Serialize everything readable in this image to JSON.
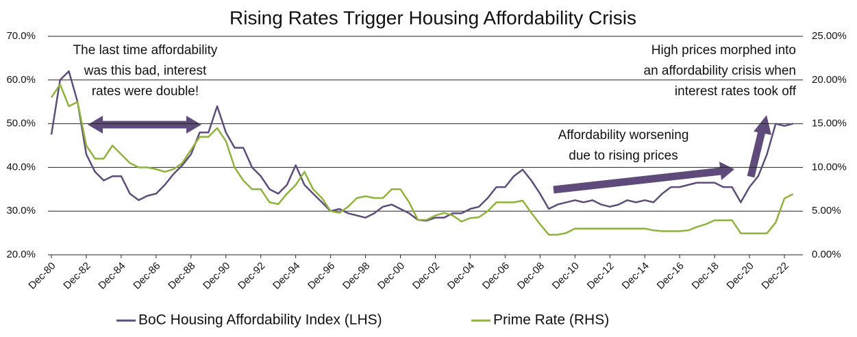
{
  "chart_data": {
    "type": "line",
    "title": "Rising Rates Trigger Housing Affordability Crisis",
    "categories": [
      "Dec-80",
      null,
      null,
      null,
      "Dec-82",
      null,
      null,
      null,
      "Dec-84",
      null,
      null,
      null,
      "Dec-86",
      null,
      null,
      null,
      "Dec-88",
      null,
      null,
      null,
      "Dec-90",
      null,
      null,
      null,
      "Dec-92",
      null,
      null,
      null,
      "Dec-94",
      null,
      null,
      null,
      "Dec-96",
      null,
      null,
      null,
      "Dec-98",
      null,
      null,
      null,
      "Dec-00",
      null,
      null,
      null,
      "Dec-02",
      null,
      null,
      null,
      "Dec-04",
      null,
      null,
      null,
      "Dec-06",
      null,
      null,
      null,
      "Dec-08",
      null,
      null,
      null,
      "Dec-10",
      null,
      null,
      null,
      "Dec-12",
      null,
      null,
      null,
      "Dec-14",
      null,
      null,
      null,
      "Dec-16",
      null,
      null,
      null,
      "Dec-18",
      null,
      null,
      null,
      "Dec-20",
      null,
      null,
      null,
      "Dec-22",
      null
    ],
    "series": [
      {
        "name": "BoC Housing Affordability Index (LHS)",
        "color": "#5e4b7c",
        "axis": "y",
        "values": [
          47.5,
          60,
          62,
          55,
          43,
          39,
          37,
          38,
          38,
          34,
          32.5,
          33.5,
          34,
          36,
          38.5,
          40.5,
          43,
          48,
          48,
          54,
          48,
          44.5,
          44.5,
          40,
          38,
          35,
          34,
          36,
          40.5,
          36,
          34,
          32,
          30,
          30.5,
          29.5,
          29,
          28.5,
          29.5,
          31,
          31.5,
          30.5,
          29.5,
          28,
          27.8,
          28.5,
          28.5,
          29.5,
          29.5,
          30.5,
          31,
          33,
          35.5,
          35.5,
          38,
          39.5,
          37,
          34,
          30.5,
          31.5,
          32,
          32.5,
          32,
          32.5,
          31.5,
          31,
          31.5,
          32.5,
          32,
          32.5,
          32,
          34,
          35.5,
          35.5,
          36,
          36.5,
          36.5,
          36.5,
          35.5,
          35.5,
          32,
          35.5,
          38,
          43,
          50,
          49.5,
          50
        ]
      },
      {
        "name": "Prime Rate (RHS)",
        "color": "#8db33a",
        "axis": "y2",
        "values": [
          18,
          19.5,
          17,
          17.5,
          12.5,
          11,
          11,
          12.5,
          11.5,
          10.5,
          10,
          10,
          9.8,
          9.5,
          9.8,
          10.5,
          12,
          13.5,
          13.5,
          14.5,
          13,
          10,
          8.5,
          7.5,
          7.5,
          6,
          5.8,
          7,
          8,
          9.5,
          7.5,
          6.5,
          5,
          4.8,
          5.5,
          6.5,
          6.7,
          6.5,
          6.5,
          7.5,
          7.5,
          6,
          4,
          4,
          4.5,
          4.8,
          4.5,
          3.8,
          4.2,
          4.3,
          5,
          6,
          6,
          6,
          6.2,
          4.8,
          3.5,
          2.3,
          2.3,
          2.5,
          3,
          3,
          3,
          3,
          3,
          3,
          3,
          3,
          3,
          2.8,
          2.7,
          2.7,
          2.7,
          2.8,
          3.2,
          3.5,
          3.95,
          3.95,
          3.95,
          2.45,
          2.45,
          2.45,
          2.45,
          3.7,
          6.45,
          6.95
        ]
      }
    ],
    "ylim": [
      20,
      70
    ],
    "yticks": [
      {
        "value": 20,
        "label": "20.0%"
      },
      {
        "value": 30,
        "label": "30.0%"
      },
      {
        "value": 40,
        "label": "40.0%"
      },
      {
        "value": 50,
        "label": "50.0%"
      },
      {
        "value": 60,
        "label": "60.0%"
      },
      {
        "value": 70,
        "label": "70.0%"
      }
    ],
    "y2lim": [
      0,
      25
    ],
    "y2ticks": [
      {
        "value": 0,
        "label": "0.00%"
      },
      {
        "value": 5,
        "label": "5.00%"
      },
      {
        "value": 10,
        "label": "10.00%"
      },
      {
        "value": 15,
        "label": "15.00%"
      },
      {
        "value": 20,
        "label": "20.00%"
      },
      {
        "value": 25,
        "label": "25.00%"
      }
    ],
    "grid": true,
    "annotations": [
      [
        "The last time affordability",
        "was this bad, interest",
        "rates were double!"
      ],
      [
        "Affordability worsening",
        "due to rising prices"
      ],
      [
        "High prices morphed into",
        "an affordability crisis when",
        "interest rates took off"
      ]
    ]
  }
}
